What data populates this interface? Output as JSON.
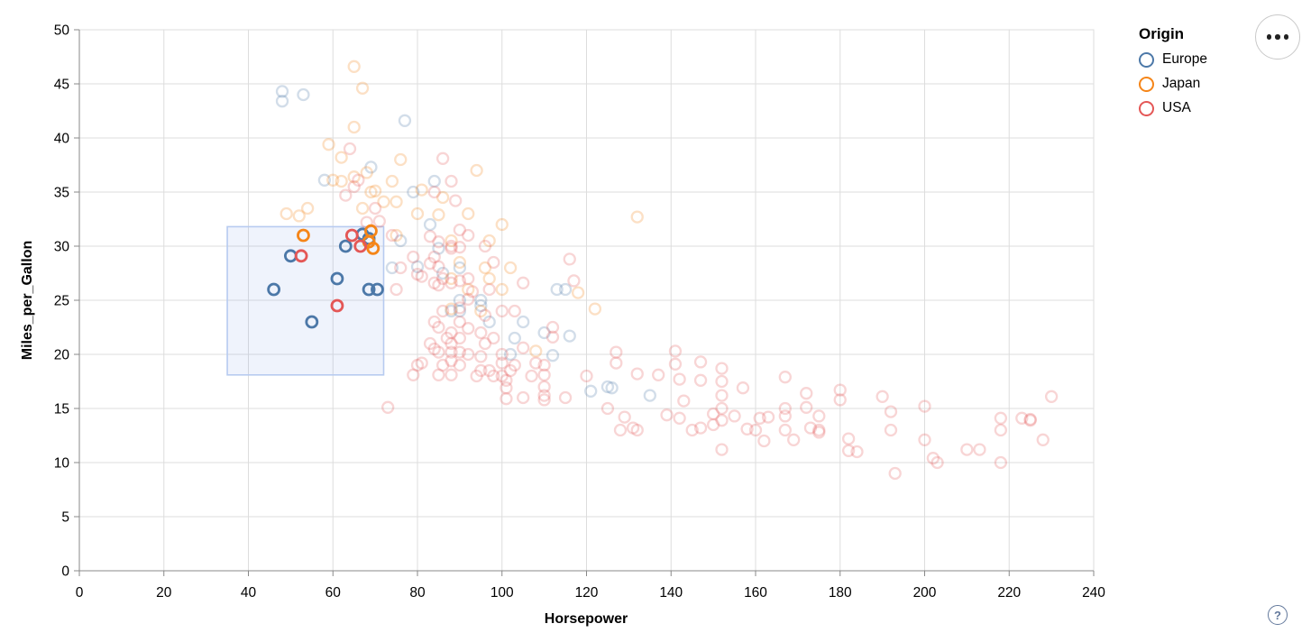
{
  "legend": {
    "title": "Origin",
    "items": [
      {
        "label": "Europe",
        "color": "#4c78a8"
      },
      {
        "label": "Japan",
        "color": "#f58518"
      },
      {
        "label": "USA",
        "color": "#e45756"
      }
    ]
  },
  "toolbar": {
    "more_options_tooltip": "Click to view actions"
  },
  "footer": {
    "help_glyph": "?"
  },
  "chart_data": {
    "type": "scatter",
    "title": "",
    "xlabel": "Horsepower",
    "ylabel": "Miles_per_Gallon",
    "xlim": [
      0,
      240
    ],
    "ylim": [
      0,
      50
    ],
    "x_ticks": [
      0,
      20,
      40,
      60,
      80,
      100,
      120,
      140,
      160,
      180,
      200,
      220,
      240
    ],
    "y_ticks": [
      0,
      5,
      10,
      15,
      20,
      25,
      30,
      35,
      40,
      45,
      50
    ],
    "grid": true,
    "legend_position": "top-right",
    "origin_codes": {
      "E": "Europe",
      "J": "Japan",
      "U": "USA"
    },
    "origin_colors": {
      "Europe": "#4c78a8",
      "Japan": "#f58518",
      "USA": "#e45756"
    },
    "point_radius": 6,
    "selected_stroke_width": 2.8,
    "unselected_stroke_width": 2.3,
    "unselected_opacity": 0.25,
    "grid_color": "#dddddd",
    "axis_color": "#888888",
    "brush": {
      "x": [
        35,
        72
      ],
      "y": [
        18.1,
        31.8
      ],
      "fill": "rgba(120,160,230,0.12)",
      "stroke": "#b7cbf0"
    },
    "points": [
      [
        46,
        26,
        "E",
        1
      ],
      [
        50,
        29.1,
        "E",
        1
      ],
      [
        55,
        23,
        "E",
        1
      ],
      [
        61,
        27,
        "E",
        1
      ],
      [
        63,
        30,
        "E",
        1
      ],
      [
        68.5,
        26,
        "E",
        1
      ],
      [
        70.5,
        26,
        "E",
        1
      ],
      [
        68.5,
        30.7,
        "E",
        1
      ],
      [
        67,
        31.1,
        "E",
        1
      ],
      [
        53,
        31,
        "J",
        1
      ],
      [
        69,
        31.4,
        "J",
        1
      ],
      [
        69.5,
        29.8,
        "J",
        1
      ],
      [
        68.5,
        30.4,
        "J",
        1
      ],
      [
        52.5,
        29.1,
        "U",
        1
      ],
      [
        61,
        24.5,
        "U",
        1
      ],
      [
        64.5,
        31,
        "U",
        1
      ],
      [
        66.5,
        30,
        "U",
        1
      ],
      [
        48,
        43.4,
        "E",
        0
      ],
      [
        48,
        44.3,
        "E",
        0
      ],
      [
        53,
        44,
        "E",
        0
      ],
      [
        77,
        41.6,
        "E",
        0
      ],
      [
        69,
        37.3,
        "E",
        0
      ],
      [
        58,
        36.1,
        "E",
        0
      ],
      [
        79,
        35,
        "E",
        0
      ],
      [
        84,
        36,
        "E",
        0
      ],
      [
        83,
        32,
        "E",
        0
      ],
      [
        76,
        30.5,
        "E",
        0
      ],
      [
        80,
        28.1,
        "E",
        0
      ],
      [
        85,
        29.8,
        "E",
        0
      ],
      [
        74,
        28,
        "E",
        0
      ],
      [
        86,
        27.5,
        "E",
        0
      ],
      [
        88,
        24,
        "E",
        0
      ],
      [
        90,
        24,
        "E",
        0
      ],
      [
        90,
        25,
        "E",
        0
      ],
      [
        90,
        28,
        "E",
        0
      ],
      [
        95,
        24.5,
        "E",
        0
      ],
      [
        95,
        25,
        "E",
        0
      ],
      [
        97,
        23,
        "E",
        0
      ],
      [
        102,
        20,
        "E",
        0
      ],
      [
        103,
        21.5,
        "E",
        0
      ],
      [
        105,
        23,
        "E",
        0
      ],
      [
        110,
        22,
        "E",
        0
      ],
      [
        112,
        19.9,
        "E",
        0
      ],
      [
        113,
        26,
        "E",
        0
      ],
      [
        115,
        26,
        "E",
        0
      ],
      [
        116,
        21.7,
        "E",
        0
      ],
      [
        121,
        16.6,
        "E",
        0
      ],
      [
        125,
        17,
        "E",
        0
      ],
      [
        126,
        16.9,
        "E",
        0
      ],
      [
        135,
        16.2,
        "E",
        0
      ],
      [
        65,
        46.6,
        "J",
        0
      ],
      [
        67,
        44.6,
        "J",
        0
      ],
      [
        65,
        41,
        "J",
        0
      ],
      [
        59,
        39.4,
        "J",
        0
      ],
      [
        62,
        38.2,
        "J",
        0
      ],
      [
        76,
        38,
        "J",
        0
      ],
      [
        74,
        36,
        "J",
        0
      ],
      [
        94,
        37,
        "J",
        0
      ],
      [
        60,
        36.1,
        "J",
        0
      ],
      [
        65,
        36.4,
        "J",
        0
      ],
      [
        68,
        36.8,
        "J",
        0
      ],
      [
        70,
        35.1,
        "J",
        0
      ],
      [
        69,
        35,
        "J",
        0
      ],
      [
        72,
        34.1,
        "J",
        0
      ],
      [
        75,
        34.1,
        "J",
        0
      ],
      [
        81,
        35.2,
        "J",
        0
      ],
      [
        86,
        34.5,
        "J",
        0
      ],
      [
        49,
        33,
        "J",
        0
      ],
      [
        52,
        32.8,
        "J",
        0
      ],
      [
        54,
        33.5,
        "J",
        0
      ],
      [
        62,
        36,
        "J",
        0
      ],
      [
        67,
        33.5,
        "J",
        0
      ],
      [
        80,
        33,
        "J",
        0
      ],
      [
        92,
        33,
        "J",
        0
      ],
      [
        100,
        32,
        "J",
        0
      ],
      [
        132,
        32.7,
        "J",
        0
      ],
      [
        88,
        30.5,
        "J",
        0
      ],
      [
        97,
        30.5,
        "J",
        0
      ],
      [
        85,
        32.9,
        "J",
        0
      ],
      [
        75,
        31,
        "J",
        0
      ],
      [
        90,
        28.5,
        "J",
        0
      ],
      [
        96,
        28,
        "J",
        0
      ],
      [
        102,
        28,
        "J",
        0
      ],
      [
        97,
        27,
        "J",
        0
      ],
      [
        88,
        27,
        "J",
        0
      ],
      [
        100,
        26,
        "J",
        0
      ],
      [
        92,
        26,
        "J",
        0
      ],
      [
        95,
        24,
        "J",
        0
      ],
      [
        88,
        24.2,
        "J",
        0
      ],
      [
        108,
        20.3,
        "J",
        0
      ],
      [
        118,
        25.7,
        "J",
        0
      ],
      [
        122,
        24.2,
        "J",
        0
      ],
      [
        64,
        39,
        "U",
        0
      ],
      [
        66,
        36.1,
        "U",
        0
      ],
      [
        63,
        34.7,
        "U",
        0
      ],
      [
        65,
        35.5,
        "U",
        0
      ],
      [
        70,
        33.5,
        "U",
        0
      ],
      [
        68,
        32.2,
        "U",
        0
      ],
      [
        71,
        32.3,
        "U",
        0
      ],
      [
        86,
        38.1,
        "U",
        0
      ],
      [
        88,
        36,
        "U",
        0
      ],
      [
        84,
        35,
        "U",
        0
      ],
      [
        89,
        34.2,
        "U",
        0
      ],
      [
        92,
        31,
        "U",
        0
      ],
      [
        90,
        31.5,
        "U",
        0
      ],
      [
        75,
        26,
        "U",
        0
      ],
      [
        76,
        28,
        "U",
        0
      ],
      [
        79,
        29,
        "U",
        0
      ],
      [
        80,
        27.4,
        "U",
        0
      ],
      [
        81,
        27.2,
        "U",
        0
      ],
      [
        83,
        28.4,
        "U",
        0
      ],
      [
        84,
        26.6,
        "U",
        0
      ],
      [
        84,
        29,
        "U",
        0
      ],
      [
        85,
        26.4,
        "U",
        0
      ],
      [
        85,
        28.1,
        "U",
        0
      ],
      [
        86,
        27,
        "U",
        0
      ],
      [
        88,
        26.6,
        "U",
        0
      ],
      [
        88,
        30,
        "U",
        0
      ],
      [
        90,
        26.8,
        "U",
        0
      ],
      [
        90,
        29.9,
        "U",
        0
      ],
      [
        92,
        27,
        "U",
        0
      ],
      [
        88,
        29.8,
        "U",
        0
      ],
      [
        85,
        30.4,
        "U",
        0
      ],
      [
        83,
        30.9,
        "U",
        0
      ],
      [
        96,
        30,
        "U",
        0
      ],
      [
        98,
        28.5,
        "U",
        0
      ],
      [
        74,
        31,
        "U",
        0
      ],
      [
        73,
        15.1,
        "U",
        0
      ],
      [
        79,
        18.1,
        "U",
        0
      ],
      [
        80,
        19,
        "U",
        0
      ],
      [
        81,
        19.2,
        "U",
        0
      ],
      [
        83,
        21,
        "U",
        0
      ],
      [
        84,
        20.5,
        "U",
        0
      ],
      [
        85,
        18.1,
        "U",
        0
      ],
      [
        85,
        20.2,
        "U",
        0
      ],
      [
        86,
        19,
        "U",
        0
      ],
      [
        87,
        21.5,
        "U",
        0
      ],
      [
        88,
        18.1,
        "U",
        0
      ],
      [
        88,
        19.4,
        "U",
        0
      ],
      [
        88,
        20.2,
        "U",
        0
      ],
      [
        88,
        21,
        "U",
        0
      ],
      [
        90,
        19,
        "U",
        0
      ],
      [
        90,
        20.2,
        "U",
        0
      ],
      [
        90,
        21.5,
        "U",
        0
      ],
      [
        92,
        20,
        "U",
        0
      ],
      [
        94,
        18,
        "U",
        0
      ],
      [
        95,
        18.5,
        "U",
        0
      ],
      [
        95,
        19.8,
        "U",
        0
      ],
      [
        96,
        21,
        "U",
        0
      ],
      [
        97,
        18.5,
        "U",
        0
      ],
      [
        98,
        18,
        "U",
        0
      ],
      [
        100,
        18,
        "U",
        0
      ],
      [
        100,
        19.2,
        "U",
        0
      ],
      [
        100,
        20,
        "U",
        0
      ],
      [
        98,
        21.5,
        "U",
        0
      ],
      [
        95,
        22,
        "U",
        0
      ],
      [
        92,
        22.4,
        "U",
        0
      ],
      [
        90,
        23,
        "U",
        0
      ],
      [
        88,
        22,
        "U",
        0
      ],
      [
        85,
        22.5,
        "U",
        0
      ],
      [
        84,
        23,
        "U",
        0
      ],
      [
        86,
        24,
        "U",
        0
      ],
      [
        90,
        24.3,
        "U",
        0
      ],
      [
        92,
        25.1,
        "U",
        0
      ],
      [
        100,
        24,
        "U",
        0
      ],
      [
        97,
        26,
        "U",
        0
      ],
      [
        93,
        25.8,
        "U",
        0
      ],
      [
        96,
        23.6,
        "U",
        0
      ],
      [
        101,
        17.6,
        "U",
        0
      ],
      [
        101,
        16.9,
        "U",
        0
      ],
      [
        101,
        15.9,
        "U",
        0
      ],
      [
        102,
        18.5,
        "U",
        0
      ],
      [
        103,
        19,
        "U",
        0
      ],
      [
        105,
        16,
        "U",
        0
      ],
      [
        107,
        18,
        "U",
        0
      ],
      [
        110,
        15.8,
        "U",
        0
      ],
      [
        110,
        16.2,
        "U",
        0
      ],
      [
        110,
        17,
        "U",
        0
      ],
      [
        110,
        18.1,
        "U",
        0
      ],
      [
        110,
        19,
        "U",
        0
      ],
      [
        112,
        21.6,
        "U",
        0
      ],
      [
        115,
        16,
        "U",
        0
      ],
      [
        116,
        28.8,
        "U",
        0
      ],
      [
        117,
        26.8,
        "U",
        0
      ],
      [
        105,
        20.6,
        "U",
        0
      ],
      [
        108,
        19.2,
        "U",
        0
      ],
      [
        112,
        22.5,
        "U",
        0
      ],
      [
        120,
        18,
        "U",
        0
      ],
      [
        105,
        26.6,
        "U",
        0
      ],
      [
        103,
        24,
        "U",
        0
      ],
      [
        127,
        20.2,
        "U",
        0
      ],
      [
        127,
        19.2,
        "U",
        0
      ],
      [
        132,
        18.2,
        "U",
        0
      ],
      [
        141,
        20.3,
        "U",
        0
      ],
      [
        141,
        19.1,
        "U",
        0
      ],
      [
        142,
        17.7,
        "U",
        0
      ],
      [
        147,
        19.3,
        "U",
        0
      ],
      [
        147,
        17.6,
        "U",
        0
      ],
      [
        152,
        18.7,
        "U",
        0
      ],
      [
        152,
        17.5,
        "U",
        0
      ],
      [
        152,
        16.2,
        "U",
        0
      ],
      [
        152,
        15,
        "U",
        0
      ],
      [
        152,
        13.9,
        "U",
        0
      ],
      [
        155,
        14.3,
        "U",
        0
      ],
      [
        157,
        16.9,
        "U",
        0
      ],
      [
        139,
        14.4,
        "U",
        0
      ],
      [
        142,
        14.1,
        "U",
        0
      ],
      [
        131,
        13.2,
        "U",
        0
      ],
      [
        132,
        13,
        "U",
        0
      ],
      [
        147,
        13.2,
        "U",
        0
      ],
      [
        152,
        11.2,
        "U",
        0
      ],
      [
        129,
        14.2,
        "U",
        0
      ],
      [
        128,
        13,
        "U",
        0
      ],
      [
        125,
        15,
        "U",
        0
      ],
      [
        137,
        18.1,
        "U",
        0
      ],
      [
        143,
        15.7,
        "U",
        0
      ],
      [
        150,
        14.5,
        "U",
        0
      ],
      [
        150,
        13.5,
        "U",
        0
      ],
      [
        145,
        13,
        "U",
        0
      ],
      [
        158,
        13.1,
        "U",
        0
      ],
      [
        161,
        14.1,
        "U",
        0
      ],
      [
        167,
        17.9,
        "U",
        0
      ],
      [
        167,
        15,
        "U",
        0
      ],
      [
        167,
        14.3,
        "U",
        0
      ],
      [
        167,
        13,
        "U",
        0
      ],
      [
        163,
        14.2,
        "U",
        0
      ],
      [
        160,
        13,
        "U",
        0
      ],
      [
        162,
        12,
        "U",
        0
      ],
      [
        169,
        12.1,
        "U",
        0
      ],
      [
        172,
        16.4,
        "U",
        0
      ],
      [
        172,
        15.1,
        "U",
        0
      ],
      [
        173,
        13.2,
        "U",
        0
      ],
      [
        175,
        14.3,
        "U",
        0
      ],
      [
        175,
        13,
        "U",
        0
      ],
      [
        175,
        12.8,
        "U",
        0
      ],
      [
        180,
        16.7,
        "U",
        0
      ],
      [
        180,
        15.8,
        "U",
        0
      ],
      [
        182,
        12.2,
        "U",
        0
      ],
      [
        182,
        11.1,
        "U",
        0
      ],
      [
        184,
        11,
        "U",
        0
      ],
      [
        190,
        16.1,
        "U",
        0
      ],
      [
        192,
        14.7,
        "U",
        0
      ],
      [
        192,
        13,
        "U",
        0
      ],
      [
        200,
        15.2,
        "U",
        0
      ],
      [
        200,
        12.1,
        "U",
        0
      ],
      [
        193,
        9,
        "U",
        0
      ],
      [
        202,
        10.4,
        "U",
        0
      ],
      [
        203,
        10,
        "U",
        0
      ],
      [
        210,
        11.2,
        "U",
        0
      ],
      [
        213,
        11.2,
        "U",
        0
      ],
      [
        218,
        14.1,
        "U",
        0
      ],
      [
        218,
        13,
        "U",
        0
      ],
      [
        218,
        10,
        "U",
        0
      ],
      [
        223,
        14.1,
        "U",
        0
      ],
      [
        225,
        14,
        "U",
        0
      ],
      [
        225,
        13.9,
        "U",
        0
      ],
      [
        228,
        12.1,
        "U",
        0
      ],
      [
        230,
        16.1,
        "U",
        0
      ]
    ]
  }
}
